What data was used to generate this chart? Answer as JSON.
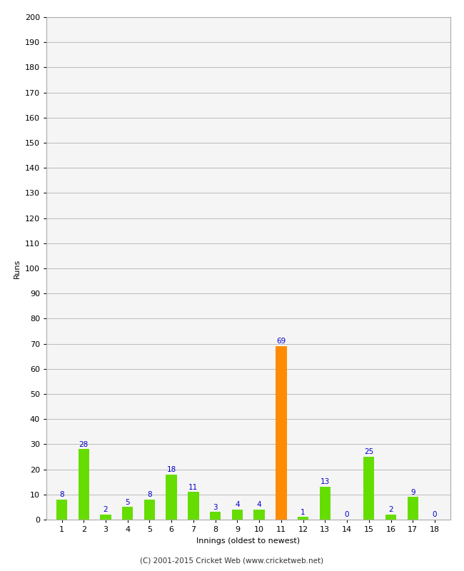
{
  "innings": [
    1,
    2,
    3,
    4,
    5,
    6,
    7,
    8,
    9,
    10,
    11,
    12,
    13,
    14,
    15,
    16,
    17,
    18
  ],
  "runs": [
    8,
    28,
    2,
    5,
    8,
    18,
    11,
    3,
    4,
    4,
    69,
    1,
    13,
    0,
    25,
    2,
    9,
    0
  ],
  "bar_colors": [
    "#66dd00",
    "#66dd00",
    "#66dd00",
    "#66dd00",
    "#66dd00",
    "#66dd00",
    "#66dd00",
    "#66dd00",
    "#66dd00",
    "#66dd00",
    "#ff8c00",
    "#66dd00",
    "#66dd00",
    "#66dd00",
    "#66dd00",
    "#66dd00",
    "#66dd00",
    "#66dd00"
  ],
  "xlabel": "Innings (oldest to newest)",
  "ylabel": "Runs",
  "ylim": [
    0,
    200
  ],
  "yticks": [
    0,
    10,
    20,
    30,
    40,
    50,
    60,
    70,
    80,
    90,
    100,
    110,
    120,
    130,
    140,
    150,
    160,
    170,
    180,
    190,
    200
  ],
  "label_color": "#0000cc",
  "grid_color": "#bbbbbb",
  "background_color": "#ffffff",
  "plot_bg_color": "#f5f5f5",
  "footer_text": "(C) 2001-2015 Cricket Web (www.cricketweb.net)",
  "label_fontsize": 7.5,
  "axis_tick_fontsize": 8,
  "axis_label_fontsize": 8,
  "footer_fontsize": 7.5,
  "bar_width": 0.5
}
